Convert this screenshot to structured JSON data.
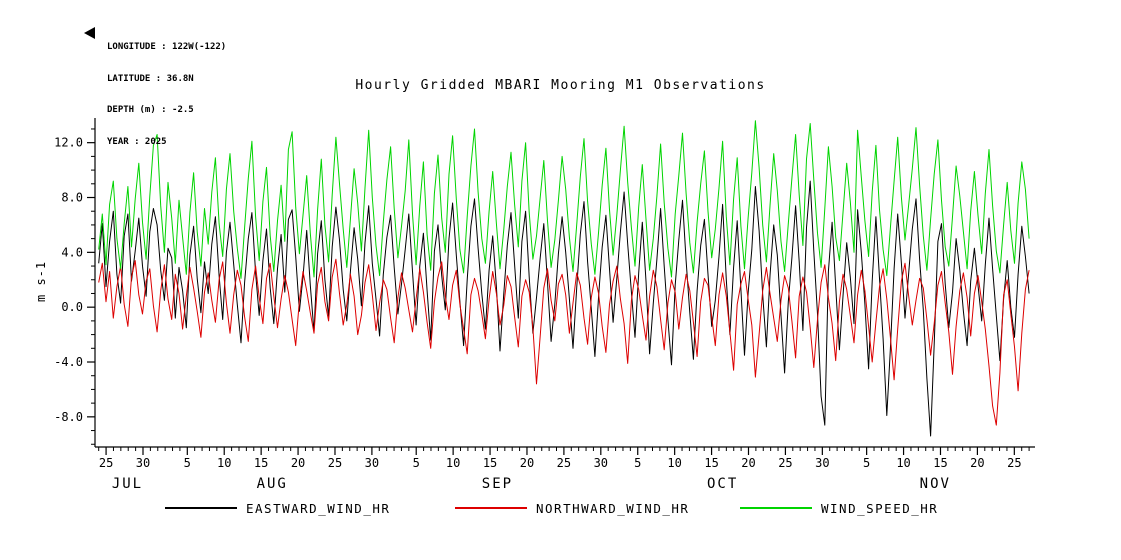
{
  "header": {
    "lines": [
      "LONGITUDE : 122W(-122)",
      "LATITUDE : 36.8N",
      "DEPTH (m) : -2.5",
      "YEAR : 2025"
    ]
  },
  "title": "Hourly Gridded MBARI Mooring M1 Observations",
  "y_axis_label": "m s-1",
  "legend": [
    {
      "label": "EASTWARD_WIND_HR",
      "color": "#000000"
    },
    {
      "label": "NORTHWARD_WIND_HR",
      "color": "#dd0000"
    },
    {
      "label": "WIND_SPEED_HR",
      "color": "#00d400"
    }
  ],
  "chart_data": {
    "type": "line",
    "title": "Hourly Gridded MBARI Mooring M1 Observations",
    "xlabel": "",
    "ylabel": "m s-1",
    "x_unit": "day_of_year_2025",
    "xlim": [
      204.5,
      331.8
    ],
    "ylim": [
      -10.2,
      13.8
    ],
    "grid": false,
    "legend_position": "bottom",
    "x_start": 205,
    "x_end": 331,
    "x_ticks": [
      {
        "pos": 206,
        "label": "25"
      },
      {
        "pos": 211,
        "label": "30"
      },
      {
        "pos": 217,
        "label": "5"
      },
      {
        "pos": 222,
        "label": "10"
      },
      {
        "pos": 227,
        "label": "15"
      },
      {
        "pos": 232,
        "label": "20"
      },
      {
        "pos": 237,
        "label": "25"
      },
      {
        "pos": 242,
        "label": "30"
      },
      {
        "pos": 248,
        "label": "5"
      },
      {
        "pos": 253,
        "label": "10"
      },
      {
        "pos": 258,
        "label": "15"
      },
      {
        "pos": 263,
        "label": "20"
      },
      {
        "pos": 268,
        "label": "25"
      },
      {
        "pos": 273,
        "label": "30"
      },
      {
        "pos": 278,
        "label": "5"
      },
      {
        "pos": 283,
        "label": "10"
      },
      {
        "pos": 288,
        "label": "15"
      },
      {
        "pos": 293,
        "label": "20"
      },
      {
        "pos": 298,
        "label": "25"
      },
      {
        "pos": 303,
        "label": "30"
      },
      {
        "pos": 309,
        "label": "5"
      },
      {
        "pos": 314,
        "label": "10"
      },
      {
        "pos": 319,
        "label": "15"
      },
      {
        "pos": 324,
        "label": "20"
      },
      {
        "pos": 329,
        "label": "25"
      }
    ],
    "x_minor_step": 1,
    "month_labels": [
      {
        "pos": 208.9,
        "label": "JUL"
      },
      {
        "pos": 228.5,
        "label": "AUG"
      },
      {
        "pos": 259.0,
        "label": "SEP"
      },
      {
        "pos": 289.5,
        "label": "OCT"
      },
      {
        "pos": 318.3,
        "label": "NOV"
      }
    ],
    "y_ticks": [
      {
        "pos": -8,
        "label": "-8.0"
      },
      {
        "pos": -4,
        "label": "-4.0"
      },
      {
        "pos": 0,
        "label": "0.0"
      },
      {
        "pos": 4,
        "label": "4.0"
      },
      {
        "pos": 8,
        "label": "8.0"
      },
      {
        "pos": 12,
        "label": "12.0"
      }
    ],
    "y_minor_step": 1,
    "series": [
      {
        "name": "EASTWARD_WIND_HR",
        "color": "#000000",
        "values": [
          3.2,
          6.1,
          1.5,
          4.8,
          7.0,
          2.4,
          0.3,
          5.2,
          6.8,
          1.9,
          4.1,
          6.5,
          3.0,
          0.8,
          5.5,
          7.2,
          6.0,
          2.7,
          0.5,
          4.3,
          3.6,
          -0.8,
          2.9,
          1.2,
          -1.5,
          3.8,
          5.9,
          2.1,
          -0.4,
          3.3,
          1.0,
          4.6,
          6.6,
          2.3,
          -0.9,
          4.0,
          6.2,
          3.1,
          0.2,
          -2.6,
          1.8,
          5.0,
          6.9,
          2.5,
          -0.6,
          3.4,
          5.7,
          1.4,
          -1.2,
          2.8,
          5.3,
          1.1,
          6.4,
          7.1,
          3.7,
          -0.3,
          2.2,
          5.6,
          1.6,
          -1.8,
          3.9,
          6.3,
          2.0,
          -0.7,
          4.4,
          7.3,
          4.9,
          1.3,
          -1.0,
          2.6,
          5.8,
          3.5,
          0.1,
          4.7,
          7.4,
          3.2,
          0.6,
          -2.1,
          2.4,
          5.1,
          6.7,
          2.9,
          -0.5,
          1.7,
          4.2,
          6.8,
          2.6,
          -1.3,
          3.0,
          5.4,
          1.2,
          -2.4,
          4.1,
          6.0,
          2.3,
          -0.2,
          5.0,
          7.6,
          3.8,
          0.4,
          -2.8,
          2.0,
          5.9,
          7.9,
          4.3,
          1.0,
          -1.6,
          2.7,
          5.2,
          1.5,
          -3.2,
          0.9,
          4.5,
          6.9,
          3.1,
          -0.8,
          4.8,
          7.0,
          2.2,
          -1.9,
          0.7,
          3.6,
          6.1,
          1.8,
          -2.5,
          0.2,
          3.9,
          6.6,
          4.0,
          0.6,
          -3.0,
          1.4,
          5.3,
          7.7,
          3.3,
          -0.1,
          -3.6,
          0.8,
          4.4,
          6.7,
          2.8,
          -1.1,
          2.1,
          5.5,
          8.4,
          4.6,
          1.1,
          -2.2,
          2.5,
          6.2,
          1.9,
          -3.4,
          0.3,
          3.5,
          7.2,
          3.0,
          -0.9,
          -4.2,
          1.6,
          4.9,
          7.8,
          3.4,
          -0.4,
          -3.8,
          1.2,
          4.5,
          6.4,
          2.4,
          -1.4,
          0.5,
          3.7,
          7.5,
          2.0,
          -2.0,
          2.9,
          6.3,
          1.3,
          -3.5,
          1.0,
          4.2,
          8.8,
          5.6,
          0.9,
          -2.9,
          2.3,
          6.0,
          3.8,
          -0.6,
          -4.8,
          0.4,
          3.6,
          7.4,
          3.3,
          -1.7,
          5.8,
          9.2,
          4.1,
          -0.5,
          -6.5,
          -8.6,
          2.6,
          6.2,
          1.5,
          -3.1,
          0.8,
          4.7,
          2.2,
          -1.2,
          7.1,
          4.0,
          0.2,
          -4.5,
          1.9,
          6.6,
          2.1,
          -2.3,
          -7.9,
          -3.0,
          2.8,
          6.8,
          3.2,
          -0.8,
          2.5,
          5.7,
          7.9,
          3.5,
          -0.2,
          -5.2,
          -9.4,
          -2.7,
          4.8,
          6.1,
          1.7,
          -1.5,
          1.1,
          5.0,
          2.7,
          -0.3,
          -2.8,
          1.9,
          4.3,
          1.6,
          -1.0,
          3.1,
          6.5,
          2.8,
          -0.6,
          -3.9,
          0.6,
          3.4,
          0.0,
          -2.2,
          2.4,
          5.9,
          3.7,
          1.0
        ]
      },
      {
        "name": "NORTHWARD_WIND_HR",
        "color": "#dd0000",
        "values": [
          1.8,
          3.2,
          0.4,
          2.6,
          -0.8,
          1.5,
          3.0,
          0.2,
          -1.4,
          2.2,
          3.4,
          0.9,
          -0.5,
          1.9,
          2.8,
          0.1,
          -1.8,
          1.2,
          3.1,
          0.6,
          -0.9,
          2.4,
          1.0,
          -1.6,
          0.8,
          2.9,
          1.4,
          -0.3,
          -2.2,
          1.1,
          2.5,
          0.5,
          -1.1,
          2.0,
          3.3,
          0.3,
          -1.9,
          0.9,
          2.7,
          1.6,
          -0.7,
          -2.5,
          1.3,
          3.0,
          0.7,
          -1.2,
          2.1,
          3.2,
          0.8,
          -1.5,
          0.6,
          2.3,
          1.1,
          -0.9,
          -2.8,
          0.5,
          2.6,
          1.2,
          -0.4,
          -1.9,
          1.7,
          2.9,
          0.4,
          -1.0,
          2.2,
          3.5,
          1.0,
          -1.3,
          0.2,
          2.4,
          0.8,
          -2.0,
          -0.6,
          1.8,
          3.1,
          0.9,
          -1.7,
          0.3,
          2.0,
          1.3,
          -0.8,
          -2.6,
          0.7,
          2.5,
          1.4,
          -0.2,
          -1.8,
          0.6,
          2.8,
          1.1,
          -1.1,
          -3.0,
          0.4,
          2.2,
          3.3,
          0.8,
          -0.9,
          1.6,
          2.7,
          0.2,
          -1.6,
          -3.4,
          0.9,
          2.1,
          1.2,
          -0.5,
          -2.3,
          0.6,
          2.6,
          1.0,
          -1.3,
          0.1,
          2.3,
          1.5,
          -0.7,
          -2.9,
          0.8,
          2.0,
          1.1,
          -1.5,
          -5.6,
          -2.1,
          1.4,
          2.8,
          0.5,
          -1.0,
          1.7,
          2.4,
          0.9,
          -1.9,
          0.3,
          2.5,
          1.6,
          -0.8,
          -2.7,
          0.7,
          2.2,
          1.0,
          -1.4,
          -3.3,
          0.2,
          1.9,
          3.0,
          0.6,
          -1.2,
          -4.1,
          0.5,
          2.3,
          1.3,
          -0.6,
          -2.4,
          0.8,
          2.7,
          1.5,
          -0.9,
          -3.1,
          0.3,
          2.0,
          1.1,
          -1.6,
          0.7,
          2.4,
          1.2,
          -1.1,
          -3.6,
          0.4,
          2.1,
          1.6,
          -0.7,
          -2.8,
          0.9,
          2.5,
          0.8,
          -1.8,
          -4.6,
          0.2,
          1.7,
          2.6,
          0.6,
          -1.3,
          -5.1,
          -2.0,
          1.2,
          2.9,
          1.0,
          -0.8,
          -2.5,
          0.5,
          2.3,
          1.4,
          -1.0,
          -3.7,
          0.8,
          2.2,
          1.1,
          -1.5,
          -4.4,
          -0.9,
          1.8,
          3.1,
          0.7,
          -1.2,
          -3.9,
          0.4,
          2.4,
          1.3,
          -0.6,
          -2.6,
          0.9,
          2.7,
          1.2,
          -1.4,
          -4.0,
          -1.1,
          1.5,
          2.8,
          0.6,
          -2.2,
          -5.3,
          -1.6,
          1.9,
          3.2,
          0.8,
          -1.3,
          0.5,
          2.1,
          1.4,
          -0.9,
          -3.5,
          -1.2,
          1.6,
          2.6,
          0.3,
          -1.8,
          -4.9,
          -1.4,
          1.2,
          2.5,
          0.7,
          -2.1,
          1.0,
          2.3,
          0.4,
          -1.6,
          -4.3,
          -7.2,
          -8.6,
          -4.8,
          0.9,
          2.0,
          -0.5,
          -2.9,
          -6.1,
          -1.9,
          1.3,
          2.7
        ]
      },
      {
        "name": "WIND_SPEED_HR",
        "color": "#00d400",
        "values": [
          4.2,
          6.8,
          3.1,
          7.5,
          9.2,
          5.0,
          2.8,
          6.1,
          8.8,
          4.4,
          7.9,
          10.5,
          6.2,
          3.5,
          8.1,
          11.8,
          12.6,
          7.4,
          4.0,
          9.1,
          6.5,
          3.2,
          7.8,
          5.1,
          2.4,
          6.9,
          9.8,
          5.5,
          3.0,
          7.2,
          4.6,
          8.4,
          10.9,
          6.1,
          3.7,
          8.6,
          11.2,
          7.0,
          4.3,
          2.1,
          5.8,
          9.4,
          12.1,
          6.6,
          3.4,
          7.7,
          10.2,
          5.2,
          2.6,
          6.3,
          8.9,
          4.8,
          11.5,
          12.8,
          7.3,
          3.9,
          6.7,
          9.6,
          5.4,
          2.2,
          7.1,
          10.8,
          6.0,
          3.3,
          8.2,
          12.4,
          9.0,
          5.7,
          2.9,
          6.4,
          10.1,
          7.6,
          4.1,
          8.7,
          12.9,
          8.0,
          4.5,
          2.3,
          6.2,
          9.3,
          11.7,
          7.2,
          3.6,
          5.9,
          8.5,
          12.2,
          6.8,
          3.1,
          7.4,
          10.6,
          5.3,
          2.7,
          8.3,
          11.1,
          6.5,
          4.0,
          9.7,
          12.5,
          7.9,
          4.2,
          2.5,
          6.6,
          10.3,
          13.0,
          8.4,
          5.0,
          3.2,
          7.0,
          9.9,
          6.1,
          2.8,
          5.6,
          8.8,
          11.3,
          7.5,
          4.4,
          9.2,
          12.0,
          6.9,
          3.5,
          5.2,
          8.0,
          10.7,
          6.3,
          2.9,
          4.9,
          7.8,
          11.0,
          8.6,
          5.1,
          2.6,
          6.0,
          9.5,
          12.3,
          7.7,
          4.6,
          2.4,
          5.5,
          8.9,
          11.6,
          7.1,
          3.8,
          6.7,
          10.0,
          13.2,
          9.1,
          5.8,
          3.0,
          7.3,
          10.4,
          6.4,
          2.7,
          5.0,
          8.1,
          11.9,
          7.6,
          4.3,
          2.2,
          6.8,
          9.6,
          12.7,
          8.3,
          4.7,
          2.5,
          6.2,
          9.0,
          11.4,
          7.0,
          3.6,
          5.7,
          8.7,
          12.1,
          6.6,
          3.1,
          7.9,
          10.9,
          5.9,
          2.8,
          6.5,
          9.8,
          13.6,
          10.2,
          6.0,
          3.3,
          7.4,
          11.2,
          8.5,
          4.8,
          2.6,
          6.1,
          9.4,
          12.6,
          8.2,
          4.5,
          10.8,
          13.4,
          9.3,
          5.4,
          2.9,
          7.2,
          11.7,
          8.8,
          5.1,
          3.4,
          6.9,
          10.5,
          7.7,
          4.0,
          12.9,
          9.5,
          6.3,
          3.7,
          8.4,
          11.8,
          7.1,
          4.2,
          2.3,
          5.8,
          9.2,
          12.4,
          8.0,
          4.9,
          7.5,
          10.1,
          13.1,
          8.9,
          5.2,
          2.7,
          6.4,
          9.7,
          12.2,
          7.8,
          4.4,
          3.0,
          6.6,
          10.3,
          8.1,
          5.5,
          2.8,
          7.0,
          9.9,
          6.7,
          3.9,
          8.3,
          11.5,
          7.4,
          4.1,
          2.5,
          6.0,
          9.1,
          5.6,
          3.2,
          7.6,
          10.6,
          8.6,
          5.0
        ]
      }
    ]
  }
}
